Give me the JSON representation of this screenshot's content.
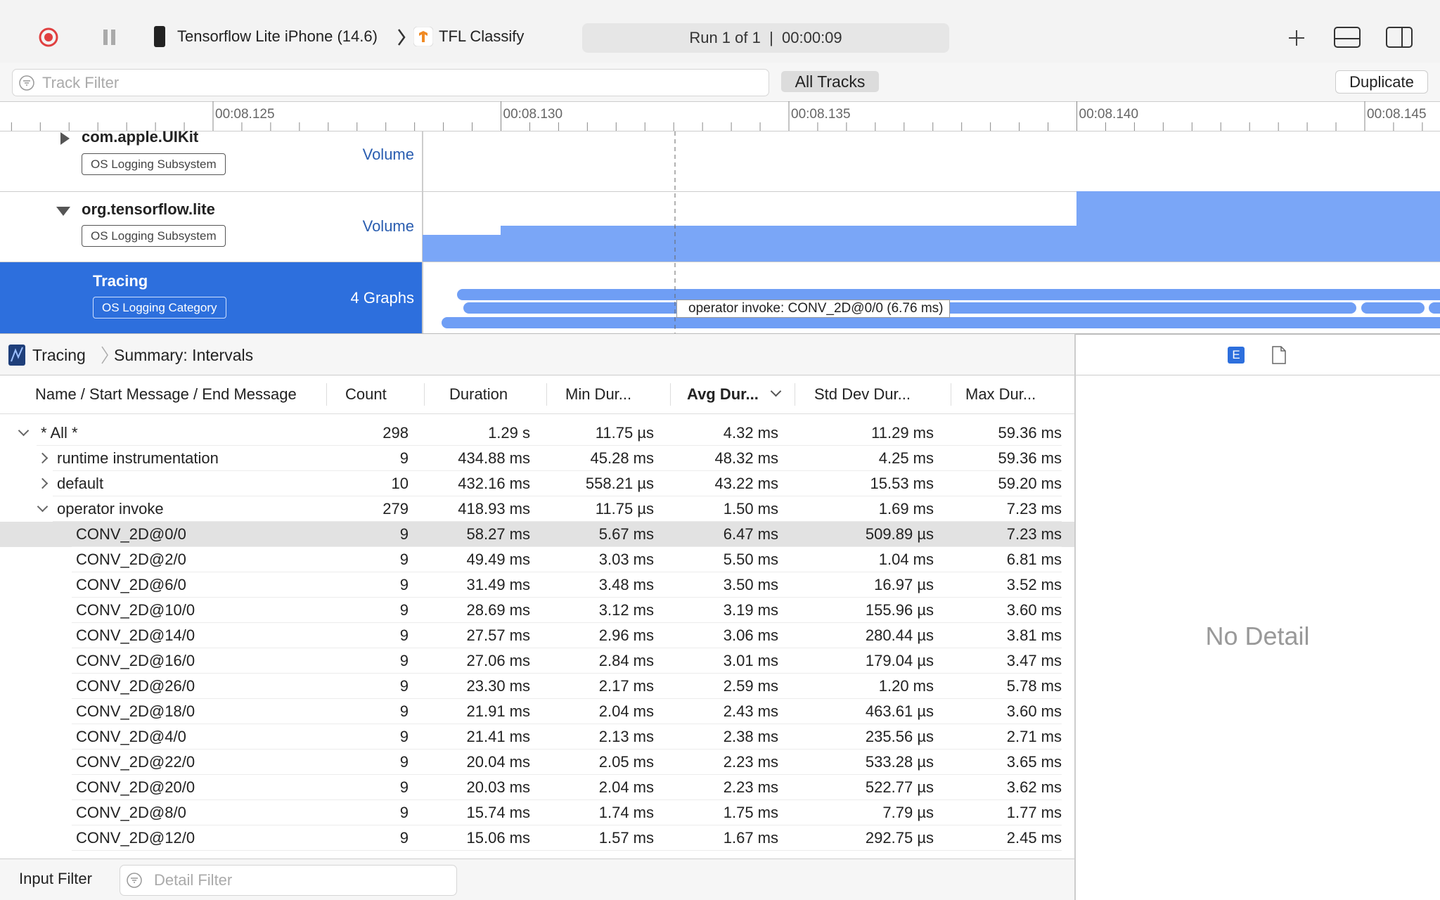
{
  "toolbar": {
    "device": "Tensorflow Lite iPhone (14.6)",
    "app": "TFL Classify",
    "run": "Run 1 of 1",
    "elapsed": "00:00:09"
  },
  "filter_bar": {
    "placeholder": "Track Filter",
    "scope": "All Tracks",
    "button": "Duplicate"
  },
  "ruler": {
    "labels": [
      "00:08.125",
      "00:08.130",
      "00:08.135",
      "00:08.140",
      "00:08.145"
    ]
  },
  "tracks": [
    {
      "name": "com.apple.UIKit",
      "badge": "OS Logging Subsystem",
      "kind": "Volume"
    },
    {
      "name": "org.tensorflow.lite",
      "badge": "OS Logging Subsystem",
      "kind": "Volume"
    },
    {
      "name": "Tracing",
      "badge": "OS Logging Category",
      "kind": "4 Graphs"
    }
  ],
  "tooltip": "operator invoke: CONV_2D@0/0 (6.76 ms)",
  "detail": {
    "breadcrumb": [
      "Tracing",
      "Summary: Intervals"
    ],
    "columns": [
      "Name / Start Message / End Message",
      "Count",
      "Duration",
      "Min Dur...",
      "Avg Dur...",
      "Std Dev Dur...",
      "Max Dur..."
    ],
    "rows": [
      [
        "* All *",
        "298",
        "1.29 s",
        "11.75 µs",
        "4.32 ms",
        "11.29 ms",
        "59.36 ms"
      ],
      [
        "runtime instrumentation",
        "9",
        "434.88 ms",
        "45.28 ms",
        "48.32 ms",
        "4.25 ms",
        "59.36 ms"
      ],
      [
        "default",
        "10",
        "432.16 ms",
        "558.21 µs",
        "43.22 ms",
        "15.53 ms",
        "59.20 ms"
      ],
      [
        "operator invoke",
        "279",
        "418.93 ms",
        "11.75 µs",
        "1.50 ms",
        "1.69 ms",
        "7.23 ms"
      ],
      [
        "CONV_2D@0/0",
        "9",
        "58.27 ms",
        "5.67 ms",
        "6.47 ms",
        "509.89 µs",
        "7.23 ms"
      ],
      [
        "CONV_2D@2/0",
        "9",
        "49.49 ms",
        "3.03 ms",
        "5.50 ms",
        "1.04 ms",
        "6.81 ms"
      ],
      [
        "CONV_2D@6/0",
        "9",
        "31.49 ms",
        "3.48 ms",
        "3.50 ms",
        "16.97 µs",
        "3.52 ms"
      ],
      [
        "CONV_2D@10/0",
        "9",
        "28.69 ms",
        "3.12 ms",
        "3.19 ms",
        "155.96 µs",
        "3.60 ms"
      ],
      [
        "CONV_2D@14/0",
        "9",
        "27.57 ms",
        "2.96 ms",
        "3.06 ms",
        "280.44 µs",
        "3.81 ms"
      ],
      [
        "CONV_2D@16/0",
        "9",
        "27.06 ms",
        "2.84 ms",
        "3.01 ms",
        "179.04 µs",
        "3.47 ms"
      ],
      [
        "CONV_2D@26/0",
        "9",
        "23.30 ms",
        "2.17 ms",
        "2.59 ms",
        "1.20 ms",
        "5.78 ms"
      ],
      [
        "CONV_2D@18/0",
        "9",
        "21.91 ms",
        "2.04 ms",
        "2.43 ms",
        "463.61 µs",
        "3.60 ms"
      ],
      [
        "CONV_2D@4/0",
        "9",
        "21.41 ms",
        "2.13 ms",
        "2.38 ms",
        "235.56 µs",
        "2.71 ms"
      ],
      [
        "CONV_2D@22/0",
        "9",
        "20.04 ms",
        "2.05 ms",
        "2.23 ms",
        "533.28 µs",
        "3.65 ms"
      ],
      [
        "CONV_2D@20/0",
        "9",
        "20.03 ms",
        "2.04 ms",
        "2.23 ms",
        "522.77 µs",
        "3.62 ms"
      ],
      [
        "CONV_2D@8/0",
        "9",
        "15.74 ms",
        "1.74 ms",
        "1.75 ms",
        "7.79 µs",
        "1.77 ms"
      ],
      [
        "CONV_2D@12/0",
        "9",
        "15.06 ms",
        "1.57 ms",
        "1.67 ms",
        "292.75 µs",
        "2.45 ms"
      ]
    ]
  },
  "inspector": {
    "icon": "E",
    "empty": "No Detail"
  },
  "bottom": {
    "label": "Input Filter",
    "placeholder": "Detail Filter"
  }
}
